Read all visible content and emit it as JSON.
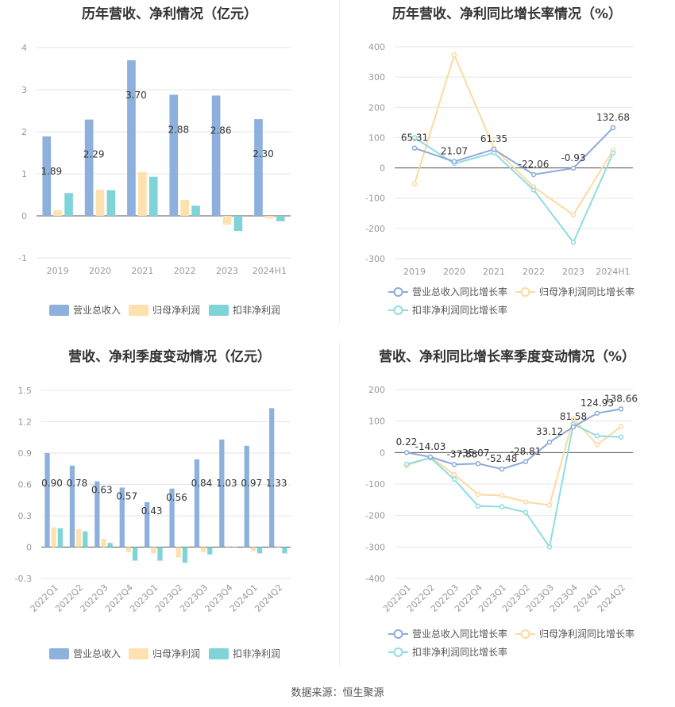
{
  "source_text": "数据来源：恒生聚源",
  "colors": {
    "revenue_bar": "#8eb0dc",
    "net_profit_bar": "#fde2b0",
    "deducted_bar": "#7fd4d8",
    "revenue_line": "#8eaadc",
    "net_profit_line": "#fed9a1",
    "deducted_line": "#8fdce0",
    "grid": "#e6e6e6",
    "axis_text": "#999999",
    "label_text": "#333333"
  },
  "chart_data": [
    {
      "type": "bar",
      "title": "历年营收、净利情况（亿元）",
      "categories": [
        "2019",
        "2020",
        "2021",
        "2022",
        "2023",
        "2024H1"
      ],
      "ylim": [
        -1,
        4
      ],
      "yticks": [
        "-1",
        "0",
        "1",
        "2",
        "3",
        "4"
      ],
      "series": [
        {
          "name": "营业总收入",
          "values": [
            1.89,
            2.29,
            3.7,
            2.88,
            2.86,
            2.3
          ],
          "labels": [
            "1.89",
            "2.29",
            "3.70",
            "2.88",
            "2.86",
            "2.30"
          ]
        },
        {
          "name": "归母净利润",
          "values": [
            0.13,
            0.62,
            1.04,
            0.38,
            -0.21,
            -0.06
          ]
        },
        {
          "name": "扣非净利润",
          "values": [
            0.54,
            0.61,
            0.93,
            0.24,
            -0.36,
            -0.13
          ]
        }
      ],
      "legend_position": "bottom",
      "grid": true
    },
    {
      "type": "line",
      "title": "历年营收、净利同比增长率情况（%）",
      "categories": [
        "2019",
        "2020",
        "2021",
        "2022",
        "2023",
        "2024H1"
      ],
      "ylim": [
        -300,
        400
      ],
      "yticks": [
        "-300",
        "-200",
        "-100",
        "0",
        "100",
        "200",
        "300",
        "400"
      ],
      "series": [
        {
          "name": "营业总收入同比增长率",
          "values": [
            65.31,
            21.07,
            61.35,
            -22.06,
            -0.93,
            132.68
          ],
          "labels": [
            "65.31",
            "21.07",
            "61.35",
            "-22.06",
            "-0.93",
            "132.68"
          ]
        },
        {
          "name": "归母净利润同比增长率",
          "values": [
            -53,
            373,
            65,
            -63,
            -155,
            58
          ]
        },
        {
          "name": "扣非净利润同比增长率",
          "values": [
            100,
            14,
            50,
            -73,
            -246,
            49
          ]
        }
      ],
      "legend_position": "bottom",
      "grid": true
    },
    {
      "type": "bar",
      "title": "营收、净利季度变动情况（亿元）",
      "categories": [
        "2022Q1",
        "2022Q2",
        "2022Q3",
        "2022Q4",
        "2023Q1",
        "2023Q2",
        "2023Q3",
        "2023Q4",
        "2024Q1",
        "2024Q2"
      ],
      "ylim": [
        -0.3,
        1.5
      ],
      "yticks": [
        "-0.3",
        "0",
        "0.3",
        "0.6",
        "0.9",
        "1.2",
        "1.5"
      ],
      "series": [
        {
          "name": "营业总收入",
          "values": [
            0.9,
            0.78,
            0.63,
            0.57,
            0.43,
            0.56,
            0.84,
            1.03,
            0.97,
            1.33
          ],
          "labels": [
            "0.90",
            "0.78",
            "0.63",
            "0.57",
            "0.43",
            "0.56",
            "0.84",
            "1.03",
            "0.97",
            "1.33"
          ]
        },
        {
          "name": "归母净利润",
          "values": [
            0.19,
            0.17,
            0.08,
            -0.05,
            -0.06,
            -0.1,
            -0.05,
            0.01,
            -0.04,
            0.01
          ]
        },
        {
          "name": "扣非净利润",
          "values": [
            0.18,
            0.15,
            0.04,
            -0.13,
            -0.13,
            -0.15,
            -0.07,
            0.0,
            -0.06,
            -0.06
          ]
        }
      ],
      "legend_position": "bottom",
      "grid": true
    },
    {
      "type": "line",
      "title": "营收、净利同比增长率季度变动情况（%）",
      "categories": [
        "2022Q1",
        "2022Q2",
        "2022Q3",
        "2022Q4",
        "2023Q1",
        "2023Q2",
        "2023Q3",
        "2023Q4",
        "2024Q1",
        "2024Q2"
      ],
      "ylim": [
        -400,
        200
      ],
      "yticks": [
        "-400",
        "-300",
        "-200",
        "-100",
        "0",
        "100",
        "200"
      ],
      "series": [
        {
          "name": "营业总收入同比增长率",
          "values": [
            0.22,
            -14.03,
            -37.88,
            -35.07,
            -52.48,
            -28.81,
            33.12,
            81.58,
            124.93,
            138.66
          ],
          "labels": [
            "0.22",
            "-14.03",
            "-37.88",
            "-35.07",
            "-52.48",
            "-28.81",
            "33.12",
            "81.58",
            "124.93",
            "138.66"
          ]
        },
        {
          "name": "归母净利润同比增长率",
          "values": [
            -42,
            -15,
            -70,
            -133,
            -137,
            -157,
            -167,
            108,
            25,
            83
          ]
        },
        {
          "name": "扣非净利润同比增长率",
          "values": [
            -37,
            -17,
            -85,
            -170,
            -172,
            -190,
            -300,
            90,
            53,
            49
          ]
        }
      ],
      "legend_position": "bottom",
      "grid": true
    }
  ]
}
